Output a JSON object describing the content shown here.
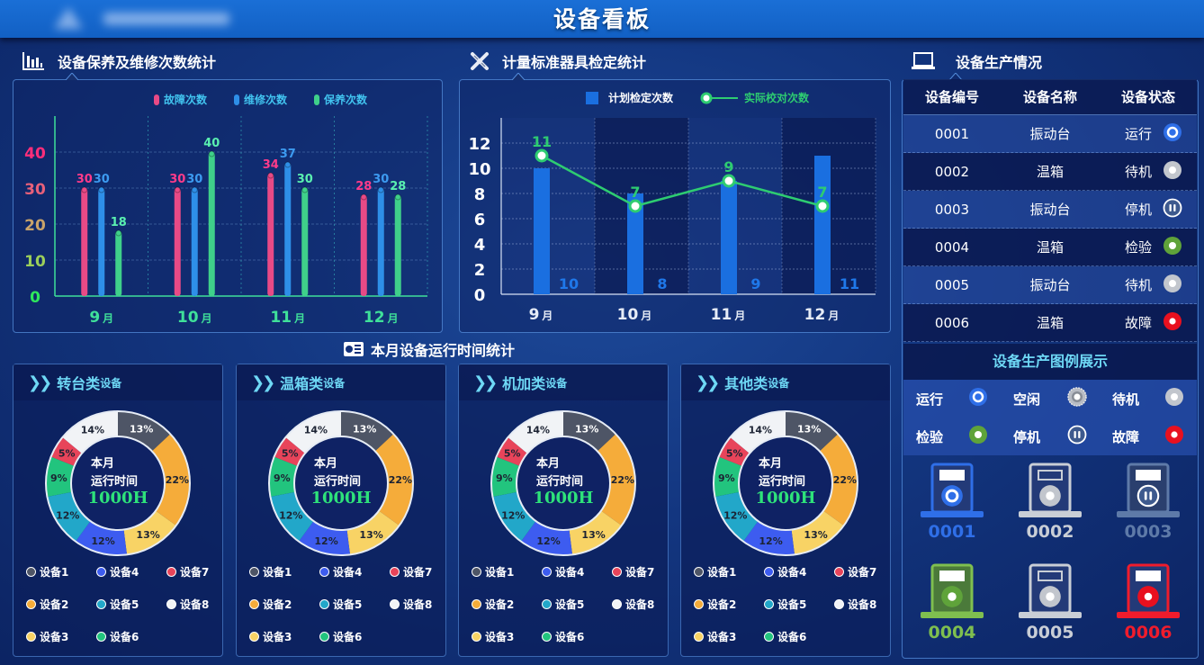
{
  "header": {
    "title": "设备看板",
    "logo_blurred": true
  },
  "maintenance": {
    "section_title": "设备保养及维修次数统计",
    "icon": "bar-chart-icon",
    "legend": [
      {
        "label": "故障次数",
        "color": "#e84a86"
      },
      {
        "label": "维修次数",
        "color": "#2e8fe8"
      },
      {
        "label": "保养次数",
        "color": "#3fd08a"
      }
    ]
  },
  "calibration": {
    "section_title": "计量标准器具检定统计",
    "icon": "ruler-pencil-icon",
    "legend": [
      {
        "label": "计划检定次数",
        "color": "#1a6fe0"
      },
      {
        "label": "实际校对次数",
        "color": "#2ecc71"
      }
    ]
  },
  "runtime": {
    "section_title": "本月设备运行时间统计",
    "icon": "pie-list-icon",
    "center_label_1": "本月",
    "center_label_2": "运行时间",
    "center_value": "1000H",
    "panels": [
      {
        "name": "转台类",
        "suffix": "设备"
      },
      {
        "name": "温箱类",
        "suffix": "设备"
      },
      {
        "name": "机加类",
        "suffix": "设备"
      },
      {
        "name": "其他类",
        "suffix": "设备"
      }
    ],
    "legend": [
      {
        "label": "设备1",
        "color": "#4e5566"
      },
      {
        "label": "设备4",
        "color": "#3d5cf0"
      },
      {
        "label": "设备7",
        "color": "#e8445a"
      },
      {
        "label": "设备2",
        "color": "#f5ac3a"
      },
      {
        "label": "设备5",
        "color": "#22a7c9"
      },
      {
        "label": "设备8",
        "color": "#f1f3f6"
      },
      {
        "label": "设备3",
        "color": "#f8d365"
      },
      {
        "label": "设备6",
        "color": "#22c47e"
      }
    ]
  },
  "production": {
    "section_title": "设备生产情况",
    "icon": "laptop-icon",
    "columns": [
      "设备编号",
      "设备名称",
      "设备状态"
    ],
    "rows": [
      {
        "id": "0001",
        "name": "振动台",
        "status": "运行",
        "icon": "running"
      },
      {
        "id": "0002",
        "name": "温箱",
        "status": "待机",
        "icon": "standby"
      },
      {
        "id": "0003",
        "name": "振动台",
        "status": "停机",
        "icon": "stopped"
      },
      {
        "id": "0004",
        "name": "温箱",
        "status": "检验",
        "icon": "inspect"
      },
      {
        "id": "0005",
        "name": "振动台",
        "status": "待机",
        "icon": "standby"
      },
      {
        "id": "0006",
        "name": "温箱",
        "status": "故障",
        "icon": "fault"
      }
    ],
    "legend_title": "设备生产图例展示",
    "legend": [
      {
        "label": "运行",
        "icon": "running"
      },
      {
        "label": "空闲",
        "icon": "idle"
      },
      {
        "label": "待机",
        "icon": "standby"
      },
      {
        "label": "检验",
        "icon": "inspect"
      },
      {
        "label": "停机",
        "icon": "stopped"
      },
      {
        "label": "故障",
        "icon": "fault"
      }
    ],
    "devices": [
      {
        "id": "0001",
        "state": "running",
        "color": "#2f6fe8"
      },
      {
        "id": "0002",
        "state": "standby",
        "color": "#c9ced6"
      },
      {
        "id": "0003",
        "state": "stopped",
        "color": "#5e7aa8"
      },
      {
        "id": "0004",
        "state": "inspect",
        "color": "#7fbf4f"
      },
      {
        "id": "0005",
        "state": "standby",
        "color": "#c9ced6"
      },
      {
        "id": "0006",
        "state": "fault",
        "color": "#f01c2c"
      }
    ]
  },
  "chart_data": [
    {
      "type": "bar",
      "title": "设备保养及维修次数统计",
      "categories": [
        "9月",
        "10月",
        "11月",
        "12月"
      ],
      "series": [
        {
          "name": "故障次数",
          "values": [
            30,
            30,
            34,
            28
          ]
        },
        {
          "name": "维修次数",
          "values": [
            30,
            30,
            37,
            30
          ]
        },
        {
          "name": "保养次数",
          "values": [
            18,
            40,
            30,
            28
          ]
        }
      ],
      "yticks": [
        0,
        10,
        20,
        30,
        40
      ],
      "ylim": [
        0,
        50
      ],
      "grid": true,
      "legend_position": "top"
    },
    {
      "type": "bar+line",
      "title": "计量标准器具检定统计",
      "categories": [
        "9月",
        "10月",
        "11月",
        "12月"
      ],
      "series": [
        {
          "name": "计划检定次数",
          "type": "bar",
          "values": [
            10,
            8,
            9,
            11
          ]
        },
        {
          "name": "实际校对次数",
          "type": "line",
          "values": [
            11,
            7,
            9,
            7
          ]
        }
      ],
      "yticks": [
        0,
        2,
        4,
        6,
        8,
        10,
        12
      ],
      "ylim": [
        0,
        12
      ],
      "grid": true,
      "legend_position": "top"
    },
    {
      "type": "pie",
      "title": "本月设备运行时间统计",
      "donut": true,
      "center_text": "本月 运行时间 1000H",
      "panels": [
        "转台类设备",
        "温箱类设备",
        "机加类设备",
        "其他类设备"
      ],
      "categories": [
        "设备1",
        "设备2",
        "设备3",
        "设备4",
        "设备5",
        "设备6",
        "设备7",
        "设备8"
      ],
      "values": [
        13,
        22,
        13,
        12,
        12,
        9,
        5,
        14
      ]
    }
  ]
}
